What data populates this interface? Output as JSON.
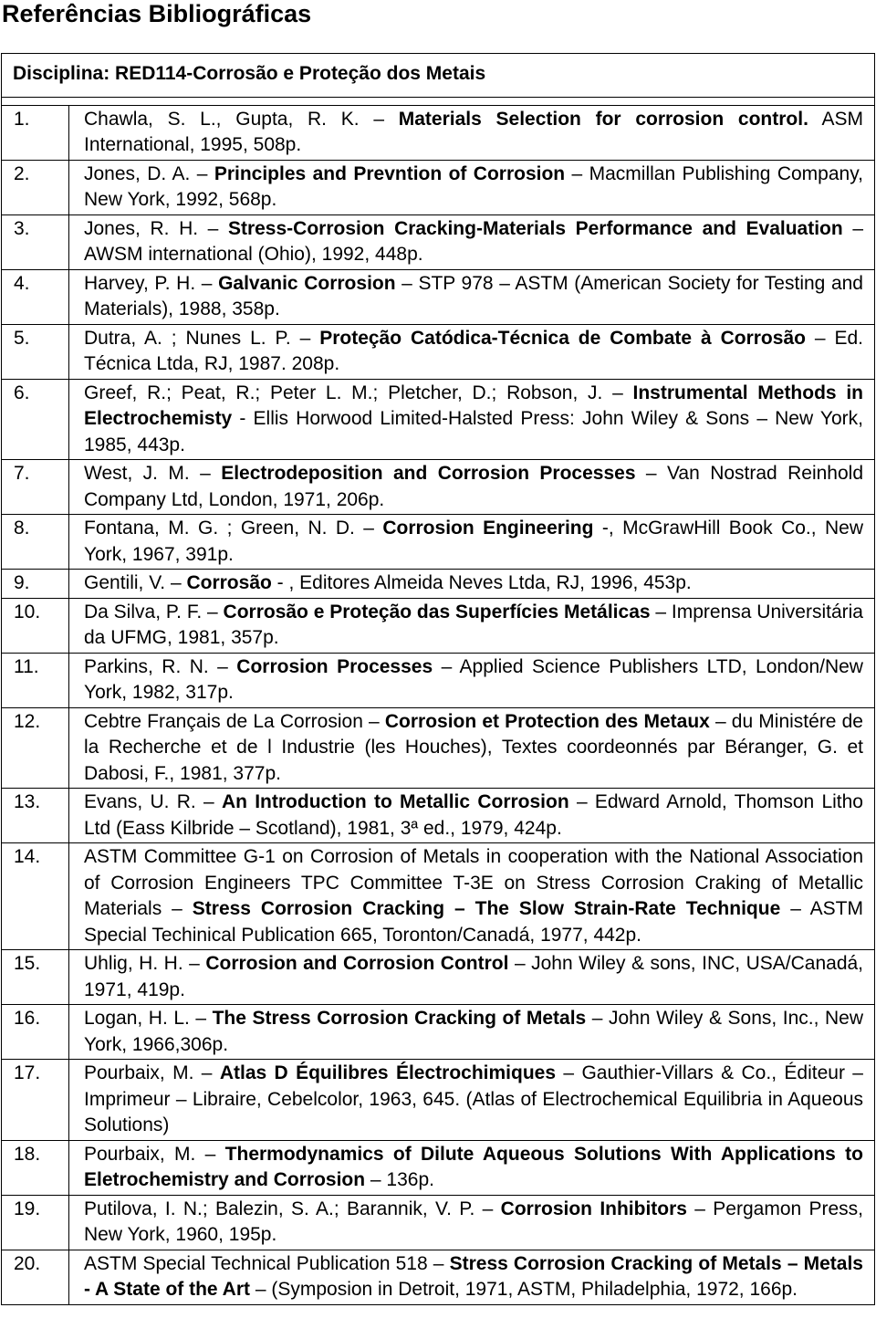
{
  "header": {
    "title": "Referências Bibliográficas"
  },
  "discipline": "Disciplina: RED114-Corrosão e Proteção dos Metais",
  "references": [
    {
      "number": "1.",
      "parts": [
        {
          "text": "Chawla, S. L., Gupta, R. K. – ",
          "bold": false
        },
        {
          "text": "Materials Selection for corrosion control.",
          "bold": true
        },
        {
          "text": " ASM International, 1995, 508p.",
          "bold": false
        }
      ]
    },
    {
      "number": "2.",
      "parts": [
        {
          "text": "Jones, D. A. – ",
          "bold": false
        },
        {
          "text": "Principles and Prevntion of Corrosion",
          "bold": true
        },
        {
          "text": " – Macmillan Publishing Company, New York, 1992, 568p.",
          "bold": false
        }
      ]
    },
    {
      "number": "3.",
      "parts": [
        {
          "text": "Jones, R. H. – ",
          "bold": false
        },
        {
          "text": "Stress-Corrosion Cracking-Materials Performance and Evaluation",
          "bold": true
        },
        {
          "text": " – AWSM international (Ohio), 1992, 448p.",
          "bold": false
        }
      ]
    },
    {
      "number": "4.",
      "parts": [
        {
          "text": "Harvey, P. H. – ",
          "bold": false
        },
        {
          "text": "Galvanic Corrosion",
          "bold": true
        },
        {
          "text": " – STP 978 – ASTM (American Society for Testing and Materials), 1988, 358p.",
          "bold": false
        }
      ]
    },
    {
      "number": "5.",
      "parts": [
        {
          "text": "Dutra, A. ; Nunes L. P. – ",
          "bold": false
        },
        {
          "text": "Proteção Catódica-Técnica de Combate à Corrosão",
          "bold": true
        },
        {
          "text": " – Ed. Técnica Ltda, RJ, 1987. 208p.",
          "bold": false
        }
      ]
    },
    {
      "number": "6.",
      "parts": [
        {
          "text": "Greef, R.; Peat, R.; Peter L. M.; Pletcher, D.; Robson, J. – ",
          "bold": false
        },
        {
          "text": "Instrumental Methods in Electrochemisty",
          "bold": true
        },
        {
          "text": " - Ellis Horwood Limited-Halsted Press: John Wiley & Sons – New York, 1985, 443p.",
          "bold": false
        }
      ]
    },
    {
      "number": "7.",
      "parts": [
        {
          "text": "West, J. M. – ",
          "bold": false
        },
        {
          "text": "Electrodeposition and Corrosion Processes",
          "bold": true
        },
        {
          "text": " – Van Nostrad Reinhold Company Ltd, London, 1971, 206p.",
          "bold": false
        }
      ]
    },
    {
      "number": "8.",
      "parts": [
        {
          "text": "Fontana, M. G. ; Green, N. D. – ",
          "bold": false
        },
        {
          "text": "Corrosion Engineering",
          "bold": true
        },
        {
          "text": " -, McGrawHill Book Co., New York, 1967, 391p.",
          "bold": false
        }
      ]
    },
    {
      "number": "9.",
      "parts": [
        {
          "text": "Gentili, V. – ",
          "bold": false
        },
        {
          "text": "Corrosão",
          "bold": true
        },
        {
          "text": " - , Editores Almeida Neves Ltda, RJ, 1996, 453p.",
          "bold": false
        }
      ]
    },
    {
      "number": "10.",
      "parts": [
        {
          "text": "Da Silva, P. F. – ",
          "bold": false
        },
        {
          "text": "Corrosão e Proteção das Superfícies Metálicas",
          "bold": true
        },
        {
          "text": " – Imprensa Universitária da UFMG, 1981, 357p.",
          "bold": false
        }
      ]
    },
    {
      "number": "11.",
      "parts": [
        {
          "text": "Parkins, R. N. – ",
          "bold": false
        },
        {
          "text": "Corrosion Processes",
          "bold": true
        },
        {
          "text": " – Applied Science Publishers LTD, London/New York, 1982, 317p.",
          "bold": false
        }
      ]
    },
    {
      "number": "12.",
      "parts": [
        {
          "text": "Cebtre Français de La Corrosion – ",
          "bold": false
        },
        {
          "text": "Corrosion et Protection des Metaux",
          "bold": true
        },
        {
          "text": " – du Ministére de la Recherche et de l Industrie (les Houches), Textes coordeonnés par Béranger, G. et Dabosi, F., 1981, 377p.",
          "bold": false
        }
      ]
    },
    {
      "number": "13.",
      "parts": [
        {
          "text": "Evans, U. R. – ",
          "bold": false
        },
        {
          "text": "An Introduction to Metallic Corrosion",
          "bold": true
        },
        {
          "text": " – Edward Arnold, Thomson Litho Ltd (Eass Kilbride – Scotland), 1981, 3ª ed., 1979, 424p.",
          "bold": false
        }
      ]
    },
    {
      "number": "14.",
      "parts": [
        {
          "text": "ASTM Committee G-1 on Corrosion of Metals in cooperation with the National Association of Corrosion Engineers TPC Committee T-3E on Stress Corrosion Craking of Metallic Materials – ",
          "bold": false
        },
        {
          "text": "Stress Corrosion Cracking – The Slow Strain-Rate Technique",
          "bold": true
        },
        {
          "text": " – ASTM Special Techinical Publication 665, Toronton/Canadá, 1977, 442p.",
          "bold": false
        }
      ]
    },
    {
      "number": "15.",
      "parts": [
        {
          "text": "Uhlig, H. H. – ",
          "bold": false
        },
        {
          "text": "Corrosion and Corrosion Control",
          "bold": true
        },
        {
          "text": " – John Wiley & sons, INC, USA/Canadá, 1971, 419p.",
          "bold": false
        }
      ]
    },
    {
      "number": "16.",
      "parts": [
        {
          "text": "Logan, H. L. – ",
          "bold": false
        },
        {
          "text": "The Stress Corrosion Cracking of Metals",
          "bold": true
        },
        {
          "text": " – John Wiley & Sons, Inc., New York, 1966,306p.",
          "bold": false
        }
      ]
    },
    {
      "number": "17.",
      "parts": [
        {
          "text": "Pourbaix, M. – ",
          "bold": false
        },
        {
          "text": "Atlas D Équilibres Électrochimiques",
          "bold": true
        },
        {
          "text": " – Gauthier-Villars & Co., Éditeur – Imprimeur – Libraire, Cebelcolor, 1963, 645. (Atlas of Electrochemical Equilibria in Aqueous Solutions)",
          "bold": false
        }
      ]
    },
    {
      "number": "18.",
      "parts": [
        {
          "text": "Pourbaix, M. – ",
          "bold": false
        },
        {
          "text": "Thermodynamics of Dilute Aqueous Solutions With Applications to Eletrochemistry and Corrosion",
          "bold": true
        },
        {
          "text": " – 136p.",
          "bold": false
        }
      ]
    },
    {
      "number": "19.",
      "parts": [
        {
          "text": "Putilova, I. N.; Balezin, S. A.; Barannik, V. P. – ",
          "bold": false
        },
        {
          "text": "Corrosion Inhibitors",
          "bold": true
        },
        {
          "text": " – Pergamon Press, New York, 1960, 195p.",
          "bold": false
        }
      ]
    },
    {
      "number": "20.",
      "parts": [
        {
          "text": "ASTM Special Technical Publication 518 – ",
          "bold": false
        },
        {
          "text": "Stress Corrosion Cracking of Metals – Metals - A State of the Art",
          "bold": true
        },
        {
          "text": " – (Symposion in Detroit, 1971, ASTM, Philadelphia, 1972, 166p.",
          "bold": false
        }
      ]
    }
  ]
}
